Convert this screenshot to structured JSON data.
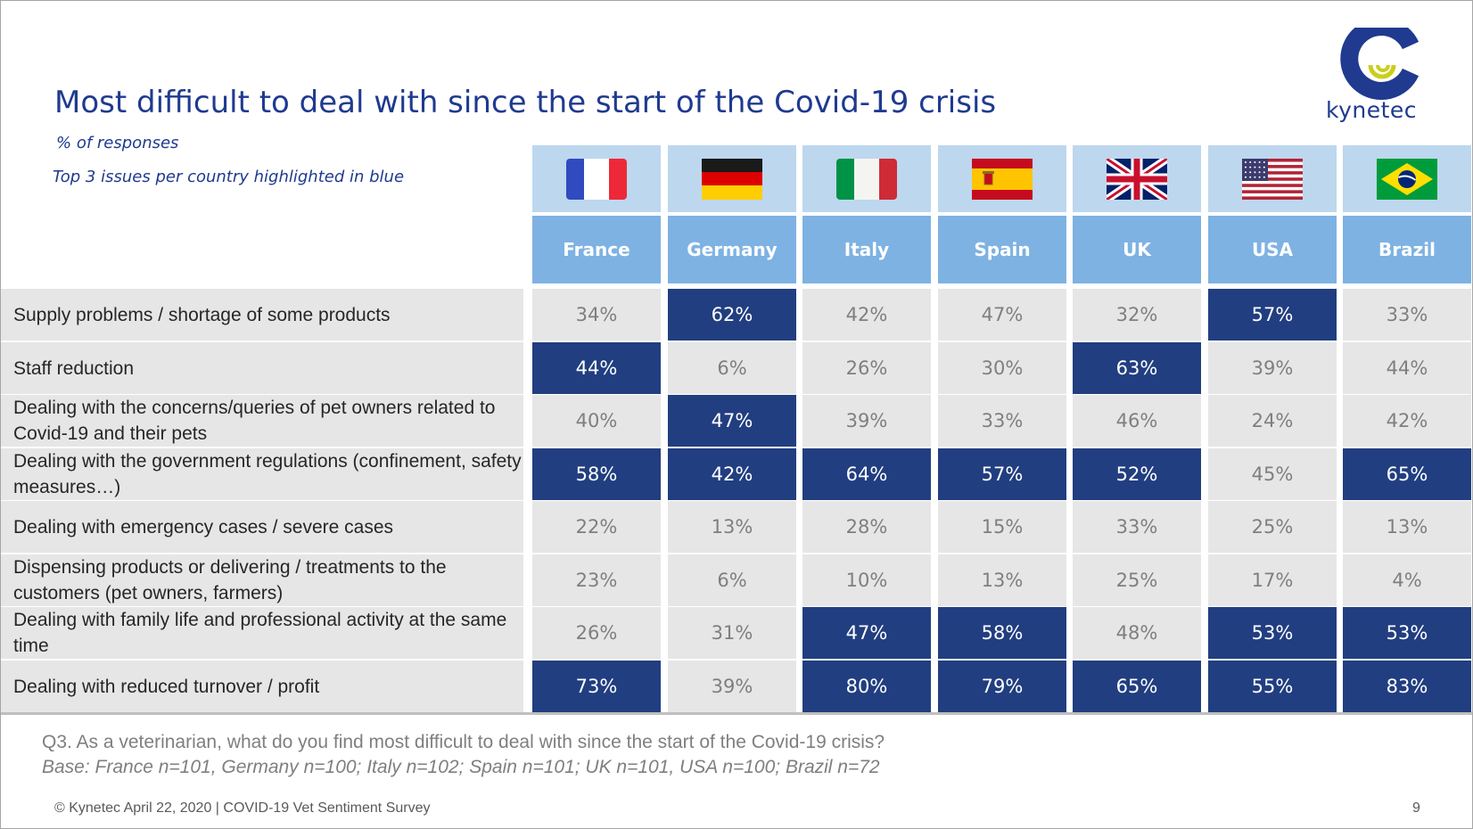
{
  "slide": {
    "title": "Most difficult to deal with since the start of the Covid-19 crisis",
    "subtitle": "% of responses",
    "note": "Top 3 issues per country highlighted in blue",
    "logo_text": "kynetec",
    "question": "Q3. As a veterinarian, what do you find most difficult to deal with since the start of the Covid-19 crisis?",
    "base": "Base: France n=101, Germany n=100; Italy n=102; Spain n=101; UK n=101, USA n=100; Brazil n=72",
    "footer": "© Kynetec April 22, 2020 | COVID-19 Vet Sentiment Survey",
    "page_number": "9"
  },
  "colors": {
    "title": "#1f3a8f",
    "highlight_cell": "#213e80",
    "normal_cell": "#e7e6e6",
    "header_flag_band": "#bdd7ee",
    "header_name_band": "#7eb2e3",
    "logo_yellow": "#c9cf1c"
  },
  "chart_data": {
    "type": "table",
    "title": "Most difficult to deal with since the start of the Covid-19 crisis",
    "unit": "%",
    "columns": [
      {
        "name": "France",
        "flag": "flag-france"
      },
      {
        "name": "Germany",
        "flag": "flag-germany"
      },
      {
        "name": "Italy",
        "flag": "flag-italy"
      },
      {
        "name": "Spain",
        "flag": "flag-spain"
      },
      {
        "name": "UK",
        "flag": "flag-uk"
      },
      {
        "name": "USA",
        "flag": "flag-usa"
      },
      {
        "name": "Brazil",
        "flag": "flag-brazil"
      }
    ],
    "rows": [
      {
        "label": "Supply problems / shortage of some products",
        "values": [
          34,
          62,
          42,
          47,
          32,
          57,
          33
        ],
        "highlighted": [
          false,
          true,
          false,
          false,
          false,
          true,
          false
        ]
      },
      {
        "label": "Staff reduction",
        "values": [
          44,
          6,
          26,
          30,
          63,
          39,
          44
        ],
        "highlighted": [
          true,
          false,
          false,
          false,
          true,
          false,
          false
        ]
      },
      {
        "label": "Dealing with the concerns/queries of pet owners related to Covid-19 and their pets",
        "values": [
          40,
          47,
          39,
          33,
          46,
          24,
          42
        ],
        "highlighted": [
          false,
          true,
          false,
          false,
          false,
          false,
          false
        ]
      },
      {
        "label": "Dealing with the government regulations (confinement, safety measures…)",
        "values": [
          58,
          42,
          64,
          57,
          52,
          45,
          65
        ],
        "highlighted": [
          true,
          true,
          true,
          true,
          true,
          false,
          true
        ]
      },
      {
        "label": "Dealing with emergency cases / severe cases",
        "values": [
          22,
          13,
          28,
          15,
          33,
          25,
          13
        ],
        "highlighted": [
          false,
          false,
          false,
          false,
          false,
          false,
          false
        ]
      },
      {
        "label": "Dispensing products or delivering / treatments to the customers (pet owners, farmers)",
        "values": [
          23,
          6,
          10,
          13,
          25,
          17,
          4
        ],
        "highlighted": [
          false,
          false,
          false,
          false,
          false,
          false,
          false
        ]
      },
      {
        "label": "Dealing with family life and professional activity at the same time",
        "values": [
          26,
          31,
          47,
          58,
          48,
          53,
          53
        ],
        "highlighted": [
          false,
          false,
          true,
          true,
          false,
          true,
          true
        ]
      },
      {
        "label": "Dealing with reduced turnover / profit",
        "values": [
          73,
          39,
          80,
          79,
          65,
          55,
          83
        ],
        "highlighted": [
          true,
          false,
          true,
          true,
          true,
          true,
          true
        ]
      }
    ]
  }
}
